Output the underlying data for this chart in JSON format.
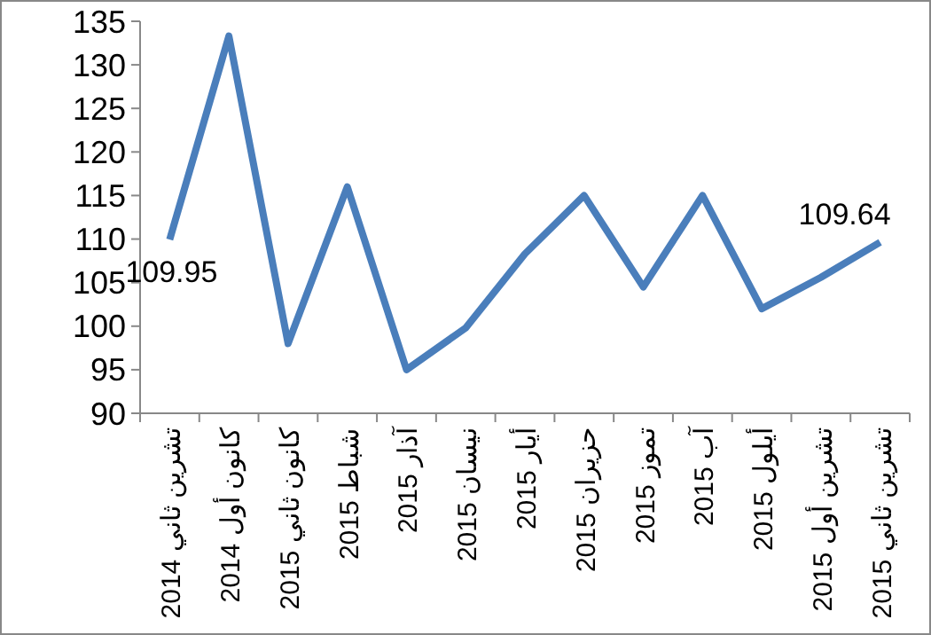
{
  "chart_data": {
    "type": "line",
    "categories": [
      "تشرين ثاني 2014",
      "كانون أول 2014",
      "كانون ثاني 2015",
      "شباط 2015",
      "آذار 2015",
      "نيسان 2015",
      "أيار 2015",
      "حزيران 2015",
      "تموز 2015",
      "آب 2015",
      "أيلول 2015",
      "تشرين أول 2015",
      "تشرين ثاني 2015"
    ],
    "series": [
      {
        "color": "#4a7ebb",
        "values": [
          109.95,
          133.3,
          98,
          116,
          95,
          99.8,
          108.3,
          115,
          104.5,
          115,
          102,
          105.6,
          109.64
        ],
        "value_labels": [
          "109.95",
          null,
          null,
          null,
          null,
          null,
          null,
          null,
          null,
          null,
          null,
          null,
          "109.64"
        ]
      }
    ],
    "ylim": [
      90,
      135
    ],
    "yticks": [
      90,
      95,
      100,
      105,
      110,
      115,
      120,
      125,
      130,
      135
    ],
    "grid": false,
    "marker": "none",
    "line_style": "solid"
  }
}
